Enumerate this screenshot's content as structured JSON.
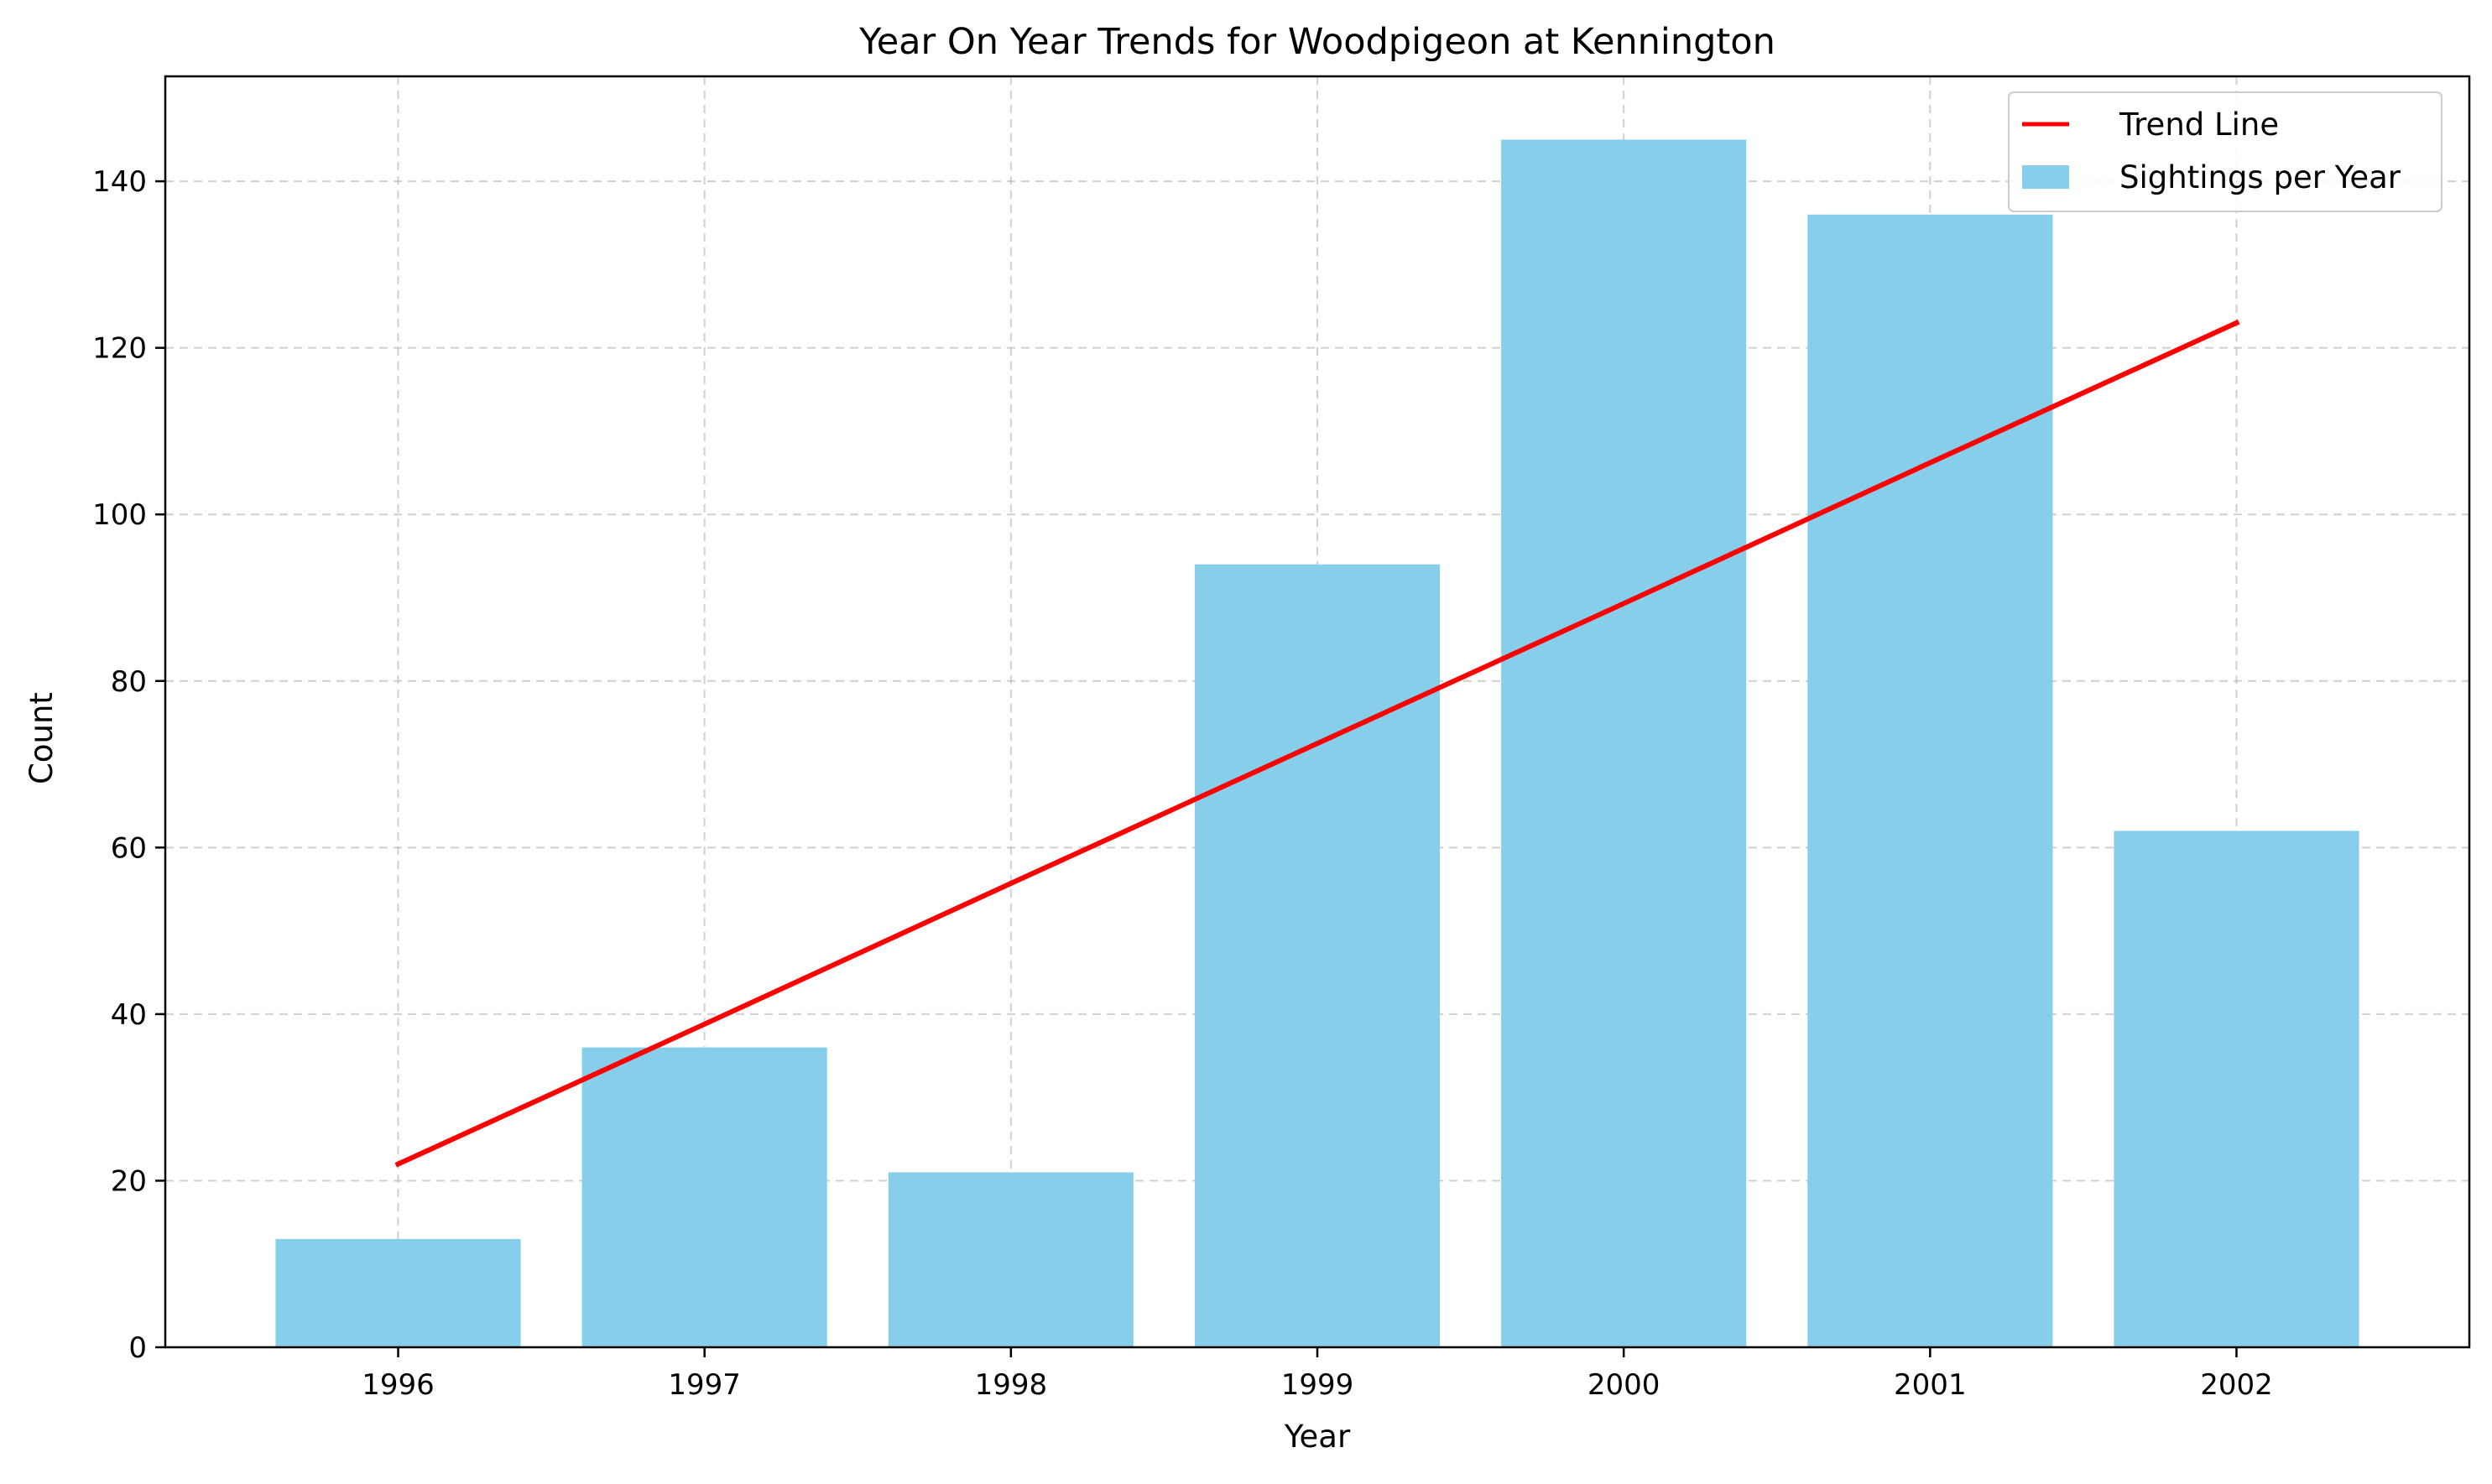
{
  "chart_data": {
    "type": "bar",
    "title": "Year On Year Trends for Woodpigeon at Kennington",
    "xlabel": "Year",
    "ylabel": "Count",
    "categories": [
      "1996",
      "1997",
      "1998",
      "1999",
      "2000",
      "2001",
      "2002"
    ],
    "series": [
      {
        "name": "Sightings per Year",
        "type": "bar",
        "color": "#87CEEB",
        "values": [
          13,
          36,
          21,
          94,
          145,
          136,
          62
        ]
      },
      {
        "name": "Trend Line",
        "type": "line",
        "color": "#ff0000",
        "values": [
          22,
          38.8,
          55.7,
          72.5,
          89.3,
          106.2,
          123
        ]
      }
    ],
    "ylim": [
      0,
      152.6
    ],
    "yticks": [
      0,
      20,
      40,
      60,
      80,
      100,
      120,
      140
    ],
    "grid": true,
    "legend_position": "top-right"
  }
}
